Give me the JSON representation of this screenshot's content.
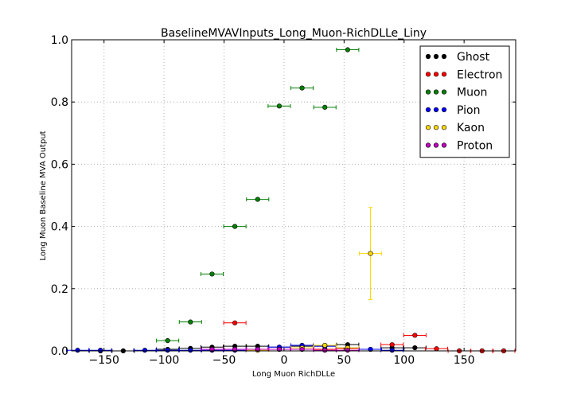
{
  "chart_data": {
    "type": "scatter",
    "title": "BaselineMVAVInputs_Long_Muon-RichDLLe_Liny",
    "xlabel": "Long Muon RichDLLe",
    "ylabel": "Long Muon Baseline MVA Output",
    "xlim": [
      -177,
      193
    ],
    "ylim": [
      0.0,
      1.0
    ],
    "x_ticks": [
      -150,
      -100,
      -50,
      0,
      50,
      100,
      150
    ],
    "x_tick_labels": [
      "−150",
      "−100",
      "−50",
      "0",
      "50",
      "100",
      "150"
    ],
    "y_ticks": [
      0.0,
      0.2,
      0.4,
      0.6,
      0.8,
      1.0
    ],
    "y_tick_labels": [
      "0.0",
      "0.2",
      "0.4",
      "0.6",
      "0.8",
      "1.0"
    ],
    "grid": true,
    "legend_position": "top-right",
    "series": [
      {
        "name": "Ghost",
        "color": "#000000",
        "x_err": 9.3,
        "points": [
          [
            -153,
            0
          ],
          [
            -134,
            0
          ],
          [
            -97,
            0.005
          ],
          [
            -78,
            0.008
          ],
          [
            -60,
            0.012
          ],
          [
            -41,
            0.015
          ],
          [
            -22,
            0.015
          ],
          [
            -4,
            0.012
          ],
          [
            15,
            0.015
          ],
          [
            34,
            0.015
          ],
          [
            53,
            0.02
          ],
          [
            72,
            0.005
          ],
          [
            90,
            0.01
          ],
          [
            109,
            0.01
          ]
        ],
        "y_err": [
          0,
          0,
          0.003,
          0.003,
          0.003,
          0.003,
          0.003,
          0.003,
          0.003,
          0.003,
          0.005,
          0.003,
          0.004,
          0.004
        ]
      },
      {
        "name": "Electron",
        "color": "#ff0000",
        "x_err": 9.3,
        "points": [
          [
            -41,
            0.09
          ],
          [
            -22,
            0.005
          ],
          [
            -4,
            0.005
          ],
          [
            15,
            0.005
          ],
          [
            34,
            0.005
          ],
          [
            53,
            0.007
          ],
          [
            90,
            0.02
          ],
          [
            109,
            0.05
          ],
          [
            127,
            0.007
          ],
          [
            146,
            0
          ],
          [
            165,
            0
          ],
          [
            183,
            0
          ]
        ],
        "y_err": [
          0.004,
          0.002,
          0.002,
          0.002,
          0.002,
          0.003,
          0.005,
          0.006,
          0.003,
          0,
          0,
          0
        ]
      },
      {
        "name": "Muon",
        "color": "#008000",
        "x_err": 9.3,
        "points": [
          [
            -97,
            0.033
          ],
          [
            -78,
            0.093
          ],
          [
            -60,
            0.247
          ],
          [
            -41,
            0.4
          ],
          [
            -22,
            0.487
          ],
          [
            -4,
            0.787
          ],
          [
            15,
            0.845
          ],
          [
            34,
            0.783
          ],
          [
            53,
            0.968
          ]
        ],
        "y_err": [
          0.003,
          0.004,
          0.005,
          0.005,
          0.006,
          0.006,
          0.006,
          0.006,
          0.005
        ]
      },
      {
        "name": "Pion",
        "color": "#0000ff",
        "x_err": 9.3,
        "points": [
          [
            -172,
            0.002
          ],
          [
            -153,
            0.002
          ],
          [
            -116,
            0.002
          ],
          [
            -97,
            0.002
          ],
          [
            -78,
            0.002
          ],
          [
            -60,
            0.002
          ],
          [
            -41,
            0.002
          ],
          [
            -22,
            0.005
          ],
          [
            -4,
            0.012
          ],
          [
            15,
            0.018
          ],
          [
            34,
            0.015
          ],
          [
            53,
            0.01
          ],
          [
            72,
            0.005
          ],
          [
            90,
            0.002
          ]
        ],
        "y_err": [
          0,
          0,
          0,
          0,
          0,
          0,
          0,
          0.002,
          0.002,
          0.003,
          0.003,
          0.003,
          0.002,
          0.002
        ]
      },
      {
        "name": "Kaon",
        "color": "#ffd700",
        "x_err": 9.3,
        "points": [
          [
            -22,
            0.002
          ],
          [
            -4,
            0.005
          ],
          [
            15,
            0.01
          ],
          [
            34,
            0.018
          ],
          [
            53,
            0.01
          ],
          [
            72,
            0.313
          ]
        ],
        "y_err": [
          0.002,
          0.002,
          0.003,
          0.004,
          0.005,
          0.148
        ]
      },
      {
        "name": "Proton",
        "color": "#bf00bf",
        "x_err": 9.3,
        "points": [
          [
            -60,
            0.005
          ],
          [
            -41,
            0.005
          ],
          [
            -22,
            0.005
          ],
          [
            -4,
            0.005
          ],
          [
            15,
            0.005
          ],
          [
            34,
            0.002
          ],
          [
            53,
            0.002
          ]
        ],
        "y_err": [
          0.002,
          0.002,
          0.002,
          0.002,
          0.002,
          0.002,
          0.002
        ]
      }
    ]
  }
}
